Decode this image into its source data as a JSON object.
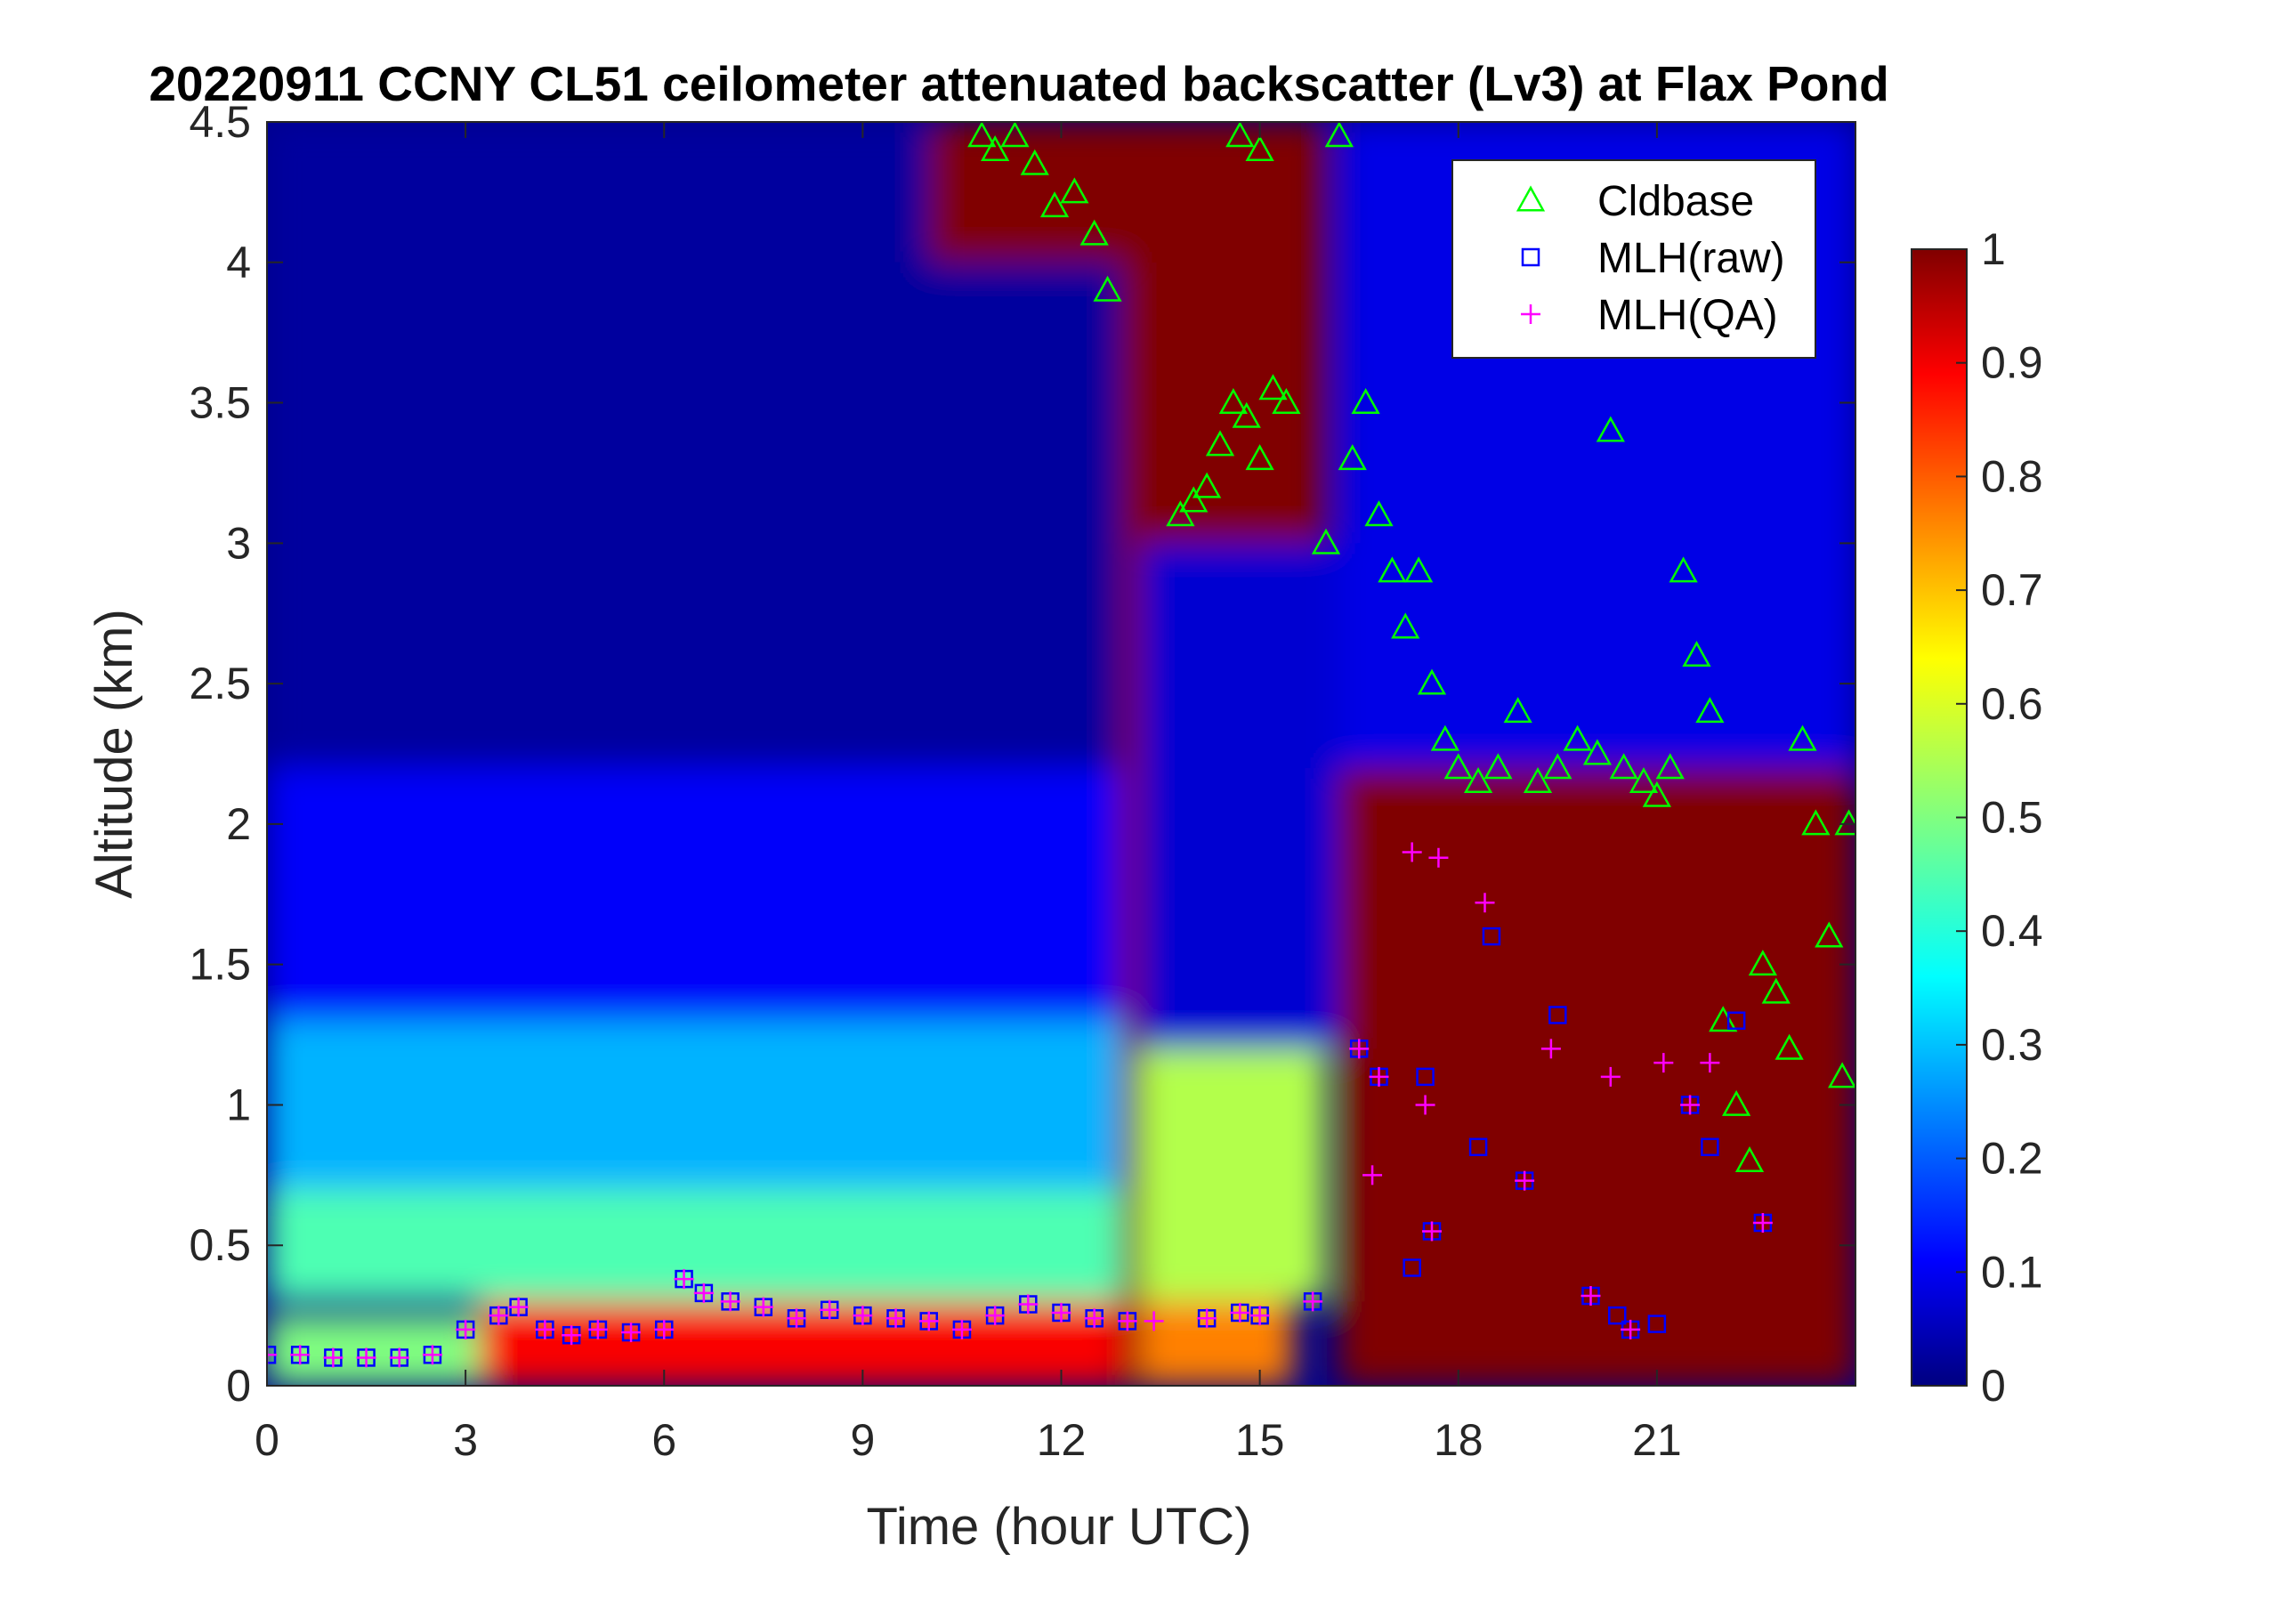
{
  "chart_data": {
    "type": "heatmap",
    "title": "20220911 CCNY CL51 ceilometer attenuated backscatter (Lv3) at Flax Pond",
    "xlabel": "Time (hour UTC)",
    "ylabel": "Altitude (km)",
    "xlim": [
      0,
      24
    ],
    "ylim": [
      0,
      4.5
    ],
    "xticks": [
      "0",
      "3",
      "6",
      "9",
      "12",
      "15",
      "18",
      "21"
    ],
    "yticks": [
      "0",
      "0.5",
      "1",
      "1.5",
      "2",
      "2.5",
      "3",
      "3.5",
      "4",
      "4.5"
    ],
    "colorbar": {
      "range": [
        0,
        1
      ],
      "ticks": [
        "0",
        "0.1",
        "0.2",
        "0.3",
        "0.4",
        "0.5",
        "0.6",
        "0.7",
        "0.8",
        "0.9",
        "1"
      ],
      "colormap": "jet"
    },
    "legend": {
      "location": "top-right",
      "entries": [
        {
          "name": "Cldbase",
          "marker": "triangle",
          "color": "#00ff00"
        },
        {
          "name": "MLH(raw)",
          "marker": "square",
          "color": "#0000ff"
        },
        {
          "name": "MLH(QA)",
          "marker": "plus",
          "color": "#ff00ff"
        }
      ]
    },
    "backscatter_zones": [
      {
        "t0": 0,
        "t1": 3.2,
        "h0": 0,
        "h1": 0.25,
        "value": 0.5
      },
      {
        "t0": 3.2,
        "t1": 13,
        "h0": 0,
        "h1": 0.3,
        "value": 0.88
      },
      {
        "t0": 0,
        "t1": 13,
        "h0": 0.3,
        "h1": 0.7,
        "value": 0.45
      },
      {
        "t0": 0,
        "t1": 13,
        "h0": 0.7,
        "h1": 1.3,
        "value": 0.3
      },
      {
        "t0": 0,
        "t1": 13,
        "h0": 1.3,
        "h1": 2.2,
        "value": 0.12
      },
      {
        "t0": 0,
        "t1": 13,
        "h0": 2.2,
        "h1": 4.5,
        "value": 0.03
      },
      {
        "t0": 13.2,
        "t1": 15.5,
        "h0": 0,
        "h1": 0.3,
        "value": 0.75
      },
      {
        "t0": 13.2,
        "t1": 16,
        "h0": 0.3,
        "h1": 1.2,
        "value": 0.55
      },
      {
        "t0": 13.2,
        "t1": 16.2,
        "h0": 1.2,
        "h1": 3.0,
        "value": 0.08
      },
      {
        "t0": 16.2,
        "t1": 24,
        "h0": 0,
        "h1": 2.2,
        "value": 1.0
      },
      {
        "t0": 16.2,
        "t1": 24,
        "h0": 2.2,
        "h1": 4.5,
        "value": 0.1
      },
      {
        "t0": 10,
        "t1": 13,
        "h0": 4.0,
        "h1": 4.5,
        "value": 1.0
      },
      {
        "t0": 13,
        "t1": 16,
        "h0": 3.0,
        "h1": 4.5,
        "value": 1.0
      },
      {
        "t0": 12.9,
        "t1": 13.2,
        "h0": 0,
        "h1": 4.5,
        "value": 1.0
      }
    ],
    "series": [
      {
        "name": "Cldbase",
        "points": [
          [
            10.8,
            4.45
          ],
          [
            11.0,
            4.4
          ],
          [
            11.3,
            4.45
          ],
          [
            11.6,
            4.35
          ],
          [
            11.9,
            4.2
          ],
          [
            12.2,
            4.25
          ],
          [
            12.5,
            4.1
          ],
          [
            12.7,
            3.9
          ],
          [
            13.8,
            3.1
          ],
          [
            14.0,
            3.15
          ],
          [
            14.2,
            3.2
          ],
          [
            14.4,
            3.35
          ],
          [
            14.6,
            3.5
          ],
          [
            14.8,
            3.45
          ],
          [
            15.0,
            3.3
          ],
          [
            15.2,
            3.55
          ],
          [
            15.4,
            3.5
          ],
          [
            14.7,
            4.45
          ],
          [
            15.0,
            4.4
          ],
          [
            16.2,
            4.45
          ],
          [
            16.0,
            3.0
          ],
          [
            16.4,
            3.3
          ],
          [
            16.6,
            3.5
          ],
          [
            16.8,
            3.1
          ],
          [
            17.0,
            2.9
          ],
          [
            17.2,
            2.7
          ],
          [
            17.4,
            2.9
          ],
          [
            17.6,
            2.5
          ],
          [
            17.8,
            2.3
          ],
          [
            18.0,
            2.2
          ],
          [
            18.3,
            2.15
          ],
          [
            18.6,
            2.2
          ],
          [
            18.9,
            2.4
          ],
          [
            19.2,
            2.15
          ],
          [
            19.5,
            2.2
          ],
          [
            19.8,
            2.3
          ],
          [
            20.1,
            2.25
          ],
          [
            20.3,
            3.4
          ],
          [
            20.5,
            2.2
          ],
          [
            20.8,
            2.15
          ],
          [
            21.0,
            2.1
          ],
          [
            21.2,
            2.2
          ],
          [
            21.4,
            2.9
          ],
          [
            21.6,
            2.6
          ],
          [
            21.8,
            2.4
          ],
          [
            22.0,
            1.3
          ],
          [
            22.2,
            1.0
          ],
          [
            22.4,
            0.8
          ],
          [
            22.6,
            1.5
          ],
          [
            22.8,
            1.4
          ],
          [
            23.0,
            1.2
          ],
          [
            23.2,
            2.3
          ],
          [
            23.4,
            2.0
          ],
          [
            23.6,
            1.6
          ],
          [
            23.8,
            1.1
          ],
          [
            23.9,
            2.0
          ]
        ]
      },
      {
        "name": "MLH(raw)",
        "points": [
          [
            0,
            0.11
          ],
          [
            0.5,
            0.11
          ],
          [
            1.0,
            0.1
          ],
          [
            1.5,
            0.1
          ],
          [
            2.0,
            0.1
          ],
          [
            2.5,
            0.11
          ],
          [
            3.0,
            0.2
          ],
          [
            3.5,
            0.25
          ],
          [
            3.8,
            0.28
          ],
          [
            4.2,
            0.2
          ],
          [
            4.6,
            0.18
          ],
          [
            5.0,
            0.2
          ],
          [
            5.5,
            0.19
          ],
          [
            6.0,
            0.2
          ],
          [
            6.3,
            0.38
          ],
          [
            6.6,
            0.33
          ],
          [
            7.0,
            0.3
          ],
          [
            7.5,
            0.28
          ],
          [
            8.0,
            0.24
          ],
          [
            8.5,
            0.27
          ],
          [
            9.0,
            0.25
          ],
          [
            9.5,
            0.24
          ],
          [
            10.0,
            0.23
          ],
          [
            10.5,
            0.2
          ],
          [
            11.0,
            0.25
          ],
          [
            11.5,
            0.29
          ],
          [
            12.0,
            0.26
          ],
          [
            12.5,
            0.24
          ],
          [
            13.0,
            0.23
          ],
          [
            14.2,
            0.24
          ],
          [
            14.7,
            0.26
          ],
          [
            15.0,
            0.25
          ],
          [
            15.8,
            0.3
          ],
          [
            16.5,
            1.2
          ],
          [
            16.8,
            1.1
          ],
          [
            17.5,
            1.1
          ],
          [
            17.6,
            0.55
          ],
          [
            17.3,
            0.42
          ],
          [
            18.3,
            0.85
          ],
          [
            18.5,
            1.6
          ],
          [
            19.0,
            0.73
          ],
          [
            19.5,
            1.32
          ],
          [
            20.0,
            0.32
          ],
          [
            20.4,
            0.25
          ],
          [
            20.6,
            0.2
          ],
          [
            21.0,
            0.22
          ],
          [
            21.5,
            1.0
          ],
          [
            21.8,
            0.85
          ],
          [
            22.2,
            1.3
          ],
          [
            22.6,
            0.58
          ]
        ]
      },
      {
        "name": "MLH(QA)",
        "points": [
          [
            0,
            0.11
          ],
          [
            0.5,
            0.11
          ],
          [
            1.0,
            0.1
          ],
          [
            1.5,
            0.1
          ],
          [
            2.0,
            0.1
          ],
          [
            2.5,
            0.11
          ],
          [
            3.0,
            0.2
          ],
          [
            3.5,
            0.25
          ],
          [
            3.8,
            0.28
          ],
          [
            4.2,
            0.2
          ],
          [
            4.6,
            0.18
          ],
          [
            5.0,
            0.2
          ],
          [
            5.5,
            0.19
          ],
          [
            6.0,
            0.2
          ],
          [
            6.3,
            0.38
          ],
          [
            6.6,
            0.33
          ],
          [
            7.0,
            0.3
          ],
          [
            7.5,
            0.28
          ],
          [
            8.0,
            0.24
          ],
          [
            8.5,
            0.27
          ],
          [
            9.0,
            0.25
          ],
          [
            9.5,
            0.24
          ],
          [
            10.0,
            0.23
          ],
          [
            10.5,
            0.2
          ],
          [
            11.0,
            0.25
          ],
          [
            11.5,
            0.29
          ],
          [
            12.0,
            0.26
          ],
          [
            12.5,
            0.24
          ],
          [
            13.0,
            0.23
          ],
          [
            13.4,
            0.23
          ],
          [
            14.2,
            0.24
          ],
          [
            14.7,
            0.26
          ],
          [
            15.0,
            0.25
          ],
          [
            15.8,
            0.3
          ],
          [
            16.5,
            1.2
          ],
          [
            16.8,
            1.1
          ],
          [
            16.7,
            0.75
          ],
          [
            17.5,
            1.0
          ],
          [
            17.6,
            0.55
          ],
          [
            17.3,
            1.9
          ],
          [
            17.7,
            1.88
          ],
          [
            18.4,
            1.72
          ],
          [
            19.0,
            0.73
          ],
          [
            19.4,
            1.2
          ],
          [
            20.0,
            0.32
          ],
          [
            20.3,
            1.1
          ],
          [
            20.6,
            0.2
          ],
          [
            21.1,
            1.15
          ],
          [
            21.5,
            1.0
          ],
          [
            21.8,
            1.15
          ],
          [
            22.6,
            0.58
          ]
        ]
      }
    ]
  }
}
